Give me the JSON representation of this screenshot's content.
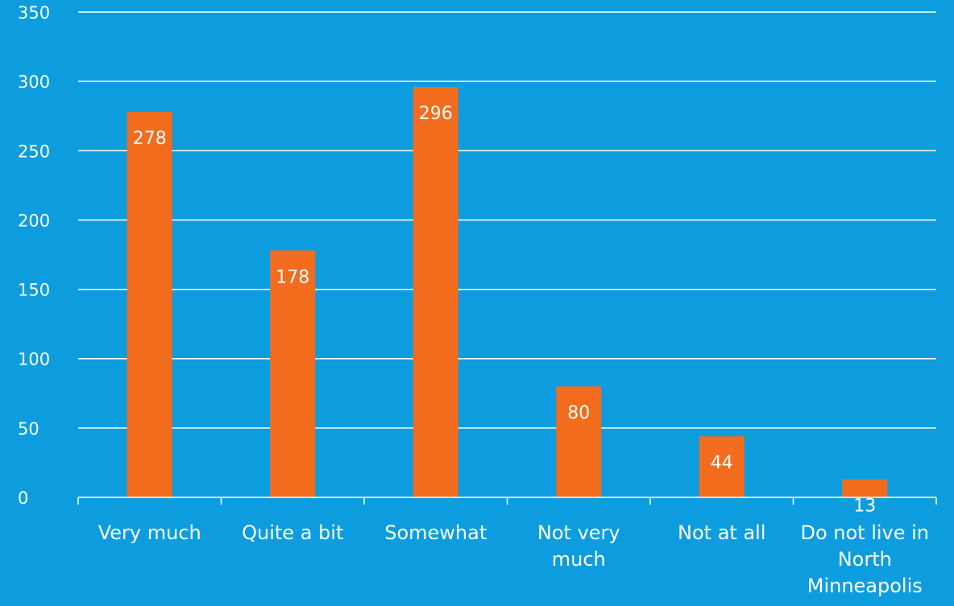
{
  "chart_data": {
    "type": "bar",
    "categories": [
      [
        "Very much"
      ],
      [
        "Quite a bit"
      ],
      [
        "Somewhat"
      ],
      [
        "Not very",
        "much"
      ],
      [
        "Not at all"
      ],
      [
        "Do not live in",
        "North",
        "Minneapolis"
      ]
    ],
    "values": [
      278,
      178,
      296,
      80,
      44,
      13
    ],
    "ylim": [
      0,
      350
    ],
    "yticks": [
      0,
      50,
      100,
      150,
      200,
      250,
      300,
      350
    ],
    "grid": true,
    "colors": {
      "background": "#0d9ddf",
      "bar": "#f36c1d",
      "text": "#ffffff"
    }
  }
}
